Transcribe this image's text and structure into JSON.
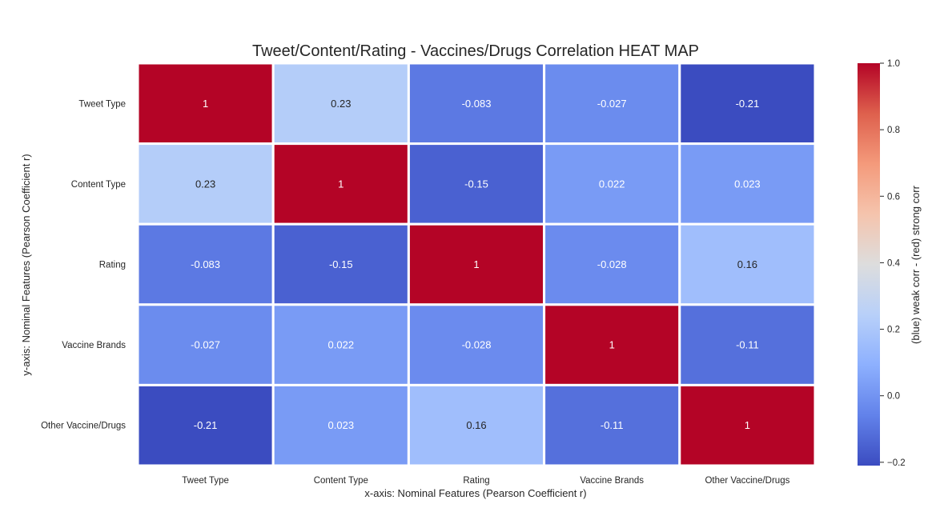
{
  "chart_data": {
    "type": "heatmap",
    "title": "Tweet/Content/Rating - Vaccines/Drugs Correlation HEAT MAP",
    "xlabel": "x-axis: Nominal Features (Pearson Coefficient r)",
    "ylabel": "y-axis: Nominal Features (Pearson Coefficient r)",
    "x_categories": [
      "Tweet Type",
      "Content Type",
      "Rating",
      "Vaccine Brands",
      "Other Vaccine/Drugs"
    ],
    "y_categories": [
      "Tweet Type",
      "Content Type",
      "Rating",
      "Vaccine Brands",
      "Other Vaccine/Drugs"
    ],
    "values": [
      [
        1,
        0.23,
        -0.083,
        -0.027,
        -0.21
      ],
      [
        0.23,
        1,
        -0.15,
        0.022,
        0.023
      ],
      [
        -0.083,
        -0.15,
        1,
        -0.028,
        0.16
      ],
      [
        -0.027,
        0.022,
        -0.028,
        1,
        -0.11
      ],
      [
        -0.21,
        0.023,
        0.16,
        -0.11,
        1
      ]
    ],
    "cell_labels": [
      [
        "1",
        "0.23",
        "-0.083",
        "-0.027",
        "-0.21"
      ],
      [
        "0.23",
        "1",
        "-0.15",
        "0.022",
        "0.023"
      ],
      [
        "-0.083",
        "-0.15",
        "1",
        "-0.028",
        "0.16"
      ],
      [
        "-0.027",
        "0.022",
        "-0.028",
        "1",
        "-0.11"
      ],
      [
        "-0.21",
        "0.023",
        "0.16",
        "-0.11",
        "1"
      ]
    ],
    "colormap": "coolwarm",
    "colorbar": {
      "label": "(blue) weak corr - (red) strong corr",
      "vmin": -0.21,
      "vmax": 1.0,
      "ticks": [
        1.0,
        0.8,
        0.6,
        0.4,
        0.2,
        0.0,
        -0.2
      ],
      "tick_labels": [
        "1.0",
        "0.8",
        "0.6",
        "0.4",
        "0.2",
        "0.0",
        "−0.2"
      ]
    }
  }
}
